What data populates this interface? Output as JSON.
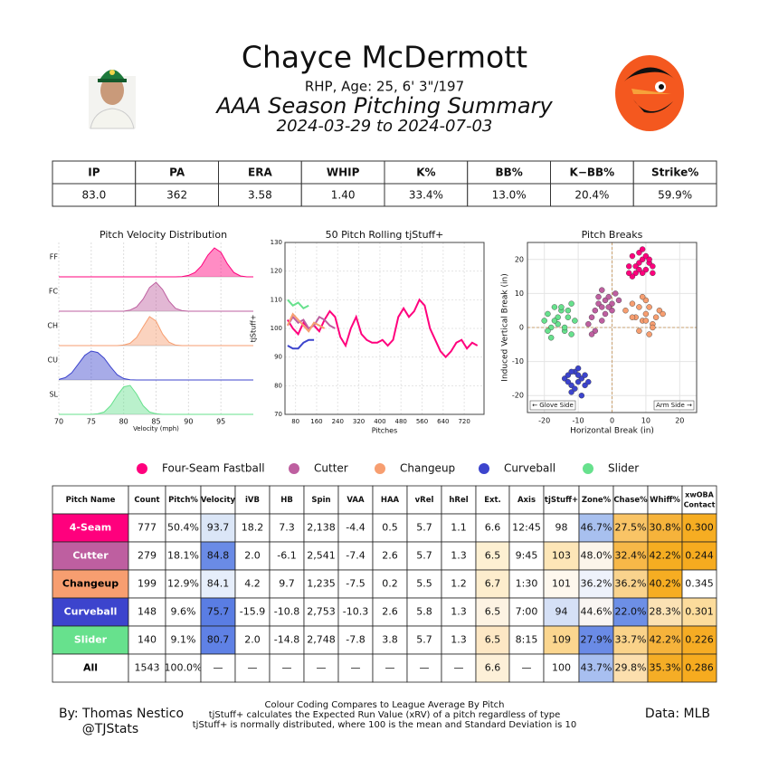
{
  "header": {
    "title": "Chayce McDermott",
    "bio": "RHP, Age: 25, 6' 3\"/197",
    "subtitle": "AAA Season Pitching Summary",
    "dates": "2024-03-29 to 2024-07-03"
  },
  "stats_table": {
    "columns": [
      "IP",
      "PA",
      "ERA",
      "WHIP",
      "K%",
      "BB%",
      "K−BB%",
      "Strike%"
    ],
    "values": [
      "83.0",
      "362",
      "3.58",
      "1.40",
      "33.4%",
      "13.0%",
      "20.4%",
      "59.9%"
    ]
  },
  "chart_data": [
    {
      "type": "ridgeline",
      "title": "Pitch Velocity Distribution",
      "x_label": "Velocity (mph)",
      "xlim": [
        70,
        100
      ],
      "xticks": [
        70,
        75,
        80,
        85,
        90,
        95
      ],
      "grid": true,
      "x": [
        70,
        71,
        72,
        73,
        74,
        75,
        76,
        77,
        78,
        79,
        80,
        81,
        82,
        83,
        84,
        85,
        86,
        87,
        88,
        89,
        90,
        91,
        92,
        93,
        94,
        95,
        96,
        97,
        98,
        99,
        100
      ],
      "series": [
        {
          "name": "FF",
          "color": "#ff007d",
          "values": [
            0,
            0,
            0,
            0,
            0,
            0,
            0,
            0,
            0,
            0,
            0,
            0,
            0,
            0,
            0,
            0,
            0,
            0,
            0,
            0.01,
            0.05,
            0.15,
            0.38,
            0.75,
            1.0,
            0.85,
            0.45,
            0.15,
            0.03,
            0,
            0
          ]
        },
        {
          "name": "FC",
          "color": "#be5fa0",
          "values": [
            0,
            0,
            0,
            0,
            0,
            0,
            0,
            0,
            0,
            0,
            0,
            0.04,
            0.15,
            0.42,
            0.82,
            1.0,
            0.75,
            0.35,
            0.1,
            0.02,
            0,
            0,
            0,
            0,
            0,
            0,
            0,
            0,
            0,
            0,
            0
          ]
        },
        {
          "name": "CH",
          "color": "#f79e70",
          "values": [
            0,
            0,
            0,
            0,
            0,
            0,
            0,
            0,
            0,
            0,
            0.02,
            0.08,
            0.28,
            0.65,
            1.0,
            0.85,
            0.4,
            0.12,
            0.02,
            0,
            0,
            0,
            0,
            0,
            0,
            0,
            0,
            0,
            0,
            0,
            0
          ]
        },
        {
          "name": "CU",
          "color": "#3c44cd",
          "values": [
            0.02,
            0.08,
            0.25,
            0.55,
            0.85,
            1.0,
            0.95,
            0.75,
            0.45,
            0.18,
            0.05,
            0.01,
            0,
            0,
            0,
            0,
            0,
            0,
            0,
            0,
            0,
            0,
            0,
            0,
            0,
            0,
            0,
            0,
            0,
            0,
            0
          ]
        },
        {
          "name": "SL",
          "color": "#67e18d",
          "values": [
            0,
            0,
            0,
            0,
            0,
            0,
            0.02,
            0.08,
            0.3,
            0.65,
            0.95,
            1.0,
            0.7,
            0.3,
            0.08,
            0.02,
            0,
            0,
            0,
            0,
            0,
            0,
            0,
            0,
            0,
            0,
            0,
            0,
            0,
            0,
            0
          ]
        }
      ]
    },
    {
      "type": "line",
      "title": "50 Pitch Rolling tjStuff+",
      "x_label": "Pitches",
      "y_label": "tjStuff+",
      "xlim": [
        40,
        795
      ],
      "xticks": [
        80,
        160,
        240,
        320,
        400,
        480,
        560,
        640,
        720
      ],
      "ylim": [
        70,
        130
      ],
      "yticks": [
        70,
        80,
        90,
        100,
        110,
        120,
        130
      ],
      "grid": true,
      "series": [
        {
          "name": "FF",
          "color": "#ff007d",
          "x": [
            50,
            70,
            90,
            110,
            130,
            150,
            170,
            190,
            210,
            230,
            250,
            270,
            290,
            310,
            330,
            350,
            370,
            390,
            410,
            430,
            450,
            470,
            490,
            510,
            530,
            550,
            570,
            590,
            610,
            630,
            650,
            670,
            690,
            710,
            730,
            750,
            770
          ],
          "values": [
            103,
            100,
            98,
            102,
            100,
            101,
            99,
            103,
            106,
            104,
            97,
            94,
            100,
            104,
            98,
            96,
            95,
            95,
            96,
            94,
            96,
            104,
            107,
            104,
            106,
            110,
            108,
            100,
            96,
            92,
            90,
            92,
            95,
            96,
            93,
            95,
            94
          ]
        },
        {
          "name": "FC",
          "color": "#be5fa0",
          "x": [
            50,
            70,
            90,
            110,
            130,
            150,
            170,
            190,
            210,
            230
          ],
          "values": [
            101,
            104,
            102,
            103,
            100,
            101,
            104,
            103,
            101,
            100
          ]
        },
        {
          "name": "CH",
          "color": "#f79e70",
          "x": [
            50,
            70,
            90,
            110,
            130,
            150,
            170,
            190
          ],
          "values": [
            101,
            105,
            103,
            101,
            99,
            102,
            101,
            100
          ]
        },
        {
          "name": "CU",
          "color": "#3c44cd",
          "x": [
            50,
            70,
            90,
            110,
            130,
            150
          ],
          "values": [
            94,
            93,
            93,
            95,
            96,
            96
          ]
        },
        {
          "name": "SL",
          "color": "#67e18d",
          "x": [
            50,
            70,
            90,
            110,
            130
          ],
          "values": [
            110,
            108,
            109,
            107,
            108
          ]
        }
      ]
    },
    {
      "type": "scatter",
      "title": "Pitch Breaks",
      "x_label": "Horizontal Break (in)",
      "y_label": "Induced Vertical Break (in)",
      "xlim": [
        -25,
        25
      ],
      "xticks": [
        -20,
        -10,
        0,
        10,
        20
      ],
      "ylim": [
        -25,
        25
      ],
      "yticks": [
        -20,
        -10,
        0,
        10,
        20
      ],
      "grid": true,
      "annotations": [
        "← Glove Side",
        "Arm Side →"
      ],
      "series": [
        {
          "name": "FF",
          "color": "#ff007d",
          "x": [
            5,
            6,
            7,
            8,
            9,
            10,
            11,
            12,
            6,
            8,
            10,
            7,
            9,
            11,
            8,
            5,
            12,
            9
          ],
          "values": [
            18,
            21,
            16,
            19,
            20,
            17,
            19,
            18,
            15,
            22,
            21,
            18,
            16,
            20,
            17,
            16,
            16,
            23
          ]
        },
        {
          "name": "FC",
          "color": "#be5fa0",
          "x": [
            -7,
            -6,
            -5,
            -4,
            -3,
            -2,
            -1,
            0,
            1,
            -5,
            -3,
            -2,
            -6,
            -4,
            0,
            -1,
            -3,
            2
          ],
          "values": [
            1,
            3,
            5,
            7,
            6,
            8,
            9,
            7,
            10,
            -1,
            2,
            4,
            -2,
            9,
            5,
            6,
            11,
            8
          ]
        },
        {
          "name": "CH",
          "color": "#f79e70",
          "x": [
            4,
            6,
            7,
            8,
            9,
            10,
            11,
            12,
            13,
            14,
            8,
            10,
            12,
            6,
            9,
            11,
            15,
            10
          ],
          "values": [
            5,
            7,
            3,
            6,
            2,
            4,
            6,
            1,
            3,
            5,
            -1,
            8,
            0,
            3,
            9,
            -2,
            4,
            2
          ]
        },
        {
          "name": "CU",
          "color": "#3c44cd",
          "x": [
            -14,
            -13,
            -12,
            -11,
            -10,
            -9,
            -8,
            -12,
            -10,
            -8,
            -11,
            -9,
            -13,
            -10,
            -7,
            -12
          ],
          "values": [
            -15,
            -14,
            -17,
            -13,
            -16,
            -15,
            -17,
            -19,
            -12,
            -14,
            -18,
            -20,
            -16,
            -14,
            -16,
            -13
          ]
        },
        {
          "name": "SL",
          "color": "#67e18d",
          "x": [
            -20,
            -19,
            -18,
            -17,
            -16,
            -15,
            -14,
            -13,
            -12,
            -11,
            -18,
            -16,
            -14,
            -12,
            -15,
            -17,
            -13,
            -19
          ],
          "values": [
            2,
            4,
            0,
            6,
            1,
            5,
            -1,
            3,
            7,
            2,
            -3,
            3,
            0,
            -2,
            6,
            2,
            5,
            -1
          ]
        }
      ]
    }
  ],
  "legend": {
    "items": [
      {
        "name": "Four-Seam Fastball",
        "color": "#ff007d"
      },
      {
        "name": "Cutter",
        "color": "#be5fa0"
      },
      {
        "name": "Changeup",
        "color": "#f79e70"
      },
      {
        "name": "Curveball",
        "color": "#3c44cd"
      },
      {
        "name": "Slider",
        "color": "#67e18d"
      }
    ]
  },
  "pitch_table": {
    "columns": [
      "Pitch Name",
      "Count",
      "Pitch%",
      "Velocity",
      "iVB",
      "HB",
      "Spin",
      "VAA",
      "HAA",
      "vRel",
      "hRel",
      "Ext.",
      "Axis",
      "tjStuff+",
      "Zone%",
      "Chase%",
      "Whiff%",
      [
        "xwOBA",
        "Contact"
      ]
    ],
    "rows": [
      {
        "cells": [
          "4-Seam",
          "777",
          "50.4%",
          "93.7",
          "18.2",
          "7.3",
          "2,138",
          "-4.4",
          "0.5",
          "5.7",
          "1.1",
          "6.6",
          "12:45",
          "98",
          "46.7%",
          "27.5%",
          "30.8%",
          "0.300"
        ],
        "name_color": "#ff007d",
        "name_text": "#ffffff",
        "colors": [
          "#ff007d",
          "#ffffff",
          "#ffffff",
          "#dbe6f7",
          "#ffffff",
          "#ffffff",
          "#ffffff",
          "#ffffff",
          "#ffffff",
          "#ffffff",
          "#ffffff",
          "#ffffff",
          "#ffffff",
          "#ffffff",
          "#a8c0ef",
          "#f9c466",
          "#f6b33b",
          "#f6ad22"
        ]
      },
      {
        "cells": [
          "Cutter",
          "279",
          "18.1%",
          "84.8",
          "2.0",
          "-6.1",
          "2,541",
          "-7.4",
          "2.6",
          "5.7",
          "1.3",
          "6.5",
          "9:45",
          "103",
          "48.0%",
          "32.4%",
          "42.2%",
          "0.244"
        ],
        "name_color": "#be5fa0",
        "name_text": "#ffffff",
        "colors": [
          "#be5fa0",
          "#ffffff",
          "#ffffff",
          "#6a8be6",
          "#ffffff",
          "#ffffff",
          "#ffffff",
          "#ffffff",
          "#ffffff",
          "#ffffff",
          "#ffffff",
          "#fdf0d2",
          "#ffffff",
          "#fde6b7",
          "#fcf5ea",
          "#f7b848",
          "#f5ad21",
          "#f6ab1f"
        ]
      },
      {
        "cells": [
          "Changeup",
          "199",
          "12.9%",
          "84.1",
          "4.2",
          "9.7",
          "1,235",
          "-7.5",
          "0.2",
          "5.5",
          "1.2",
          "6.7",
          "1:30",
          "101",
          "36.2%",
          "36.2%",
          "40.2%",
          "0.345"
        ],
        "name_color": "#f79e70",
        "name_text": "#000000",
        "colors": [
          "#f79e70",
          "#ffffff",
          "#ffffff",
          "#e6eefb",
          "#ffffff",
          "#ffffff",
          "#ffffff",
          "#ffffff",
          "#ffffff",
          "#ffffff",
          "#ffffff",
          "#fdedcd",
          "#ffffff",
          "#fef8ee",
          "#eef2fb",
          "#f9d38d",
          "#f6ad22",
          "#ffffff"
        ]
      },
      {
        "cells": [
          "Curveball",
          "148",
          "9.6%",
          "75.7",
          "-15.9",
          "-10.8",
          "2,753",
          "-10.3",
          "2.6",
          "5.8",
          "1.3",
          "6.5",
          "7:00",
          "94",
          "44.6%",
          "22.0%",
          "28.3%",
          "0.301"
        ],
        "name_color": "#3c44cd",
        "name_text": "#ffffff",
        "colors": [
          "#3c44cd",
          "#ffffff",
          "#ffffff",
          "#5a7de3",
          "#ffffff",
          "#ffffff",
          "#ffffff",
          "#ffffff",
          "#ffffff",
          "#ffffff",
          "#ffffff",
          "#fdf3e3",
          "#ffffff",
          "#d5e0f6",
          "#f9f5f2",
          "#6d8fe6",
          "#fbe2b4",
          "#fcdc9c"
        ]
      },
      {
        "cells": [
          "Slider",
          "140",
          "9.1%",
          "80.7",
          "2.0",
          "-14.8",
          "2,748",
          "-7.8",
          "3.8",
          "5.7",
          "1.3",
          "6.5",
          "8:15",
          "109",
          "27.9%",
          "33.7%",
          "42.2%",
          "0.226"
        ],
        "name_color": "#67e18d",
        "name_text": "#ffffff",
        "colors": [
          "#67e18d",
          "#ffffff",
          "#ffffff",
          "#5f81e5",
          "#ffffff",
          "#ffffff",
          "#ffffff",
          "#ffffff",
          "#ffffff",
          "#ffffff",
          "#ffffff",
          "#fde7c4",
          "#ffffff",
          "#fbd68f",
          "#6a8be6",
          "#fad38a",
          "#f6b33b",
          "#f6ac24"
        ]
      },
      {
        "cells": [
          "All",
          "1543",
          "100.0%",
          "—",
          "—",
          "—",
          "—",
          "—",
          "—",
          "—",
          "—",
          "6.6",
          "—",
          "100",
          "43.7%",
          "29.8%",
          "35.3%",
          "0.286"
        ],
        "name_color": "#ffffff",
        "name_text": "#000000",
        "colors": [
          "#ffffff",
          "#ffffff",
          "#ffffff",
          "#ffffff",
          "#ffffff",
          "#ffffff",
          "#ffffff",
          "#ffffff",
          "#ffffff",
          "#ffffff",
          "#ffffff",
          "#fdf0d8",
          "#ffffff",
          "#ffffff",
          "#a8bff0",
          "#fcdfae",
          "#f5ad26",
          "#f6ab1f"
        ]
      }
    ]
  },
  "footer": {
    "author": "By: Thomas Nestico",
    "handle": "@TJStats",
    "notes": [
      "Colour Coding Compares to League Average By Pitch",
      "tjStuff+ calculates the Expected Run Value (xRV) of a pitch regardless of type",
      "tjStuff+ is normally distributed, where 100 is the mean and Standard Deviation is 10"
    ],
    "source": "Data: MLB"
  }
}
